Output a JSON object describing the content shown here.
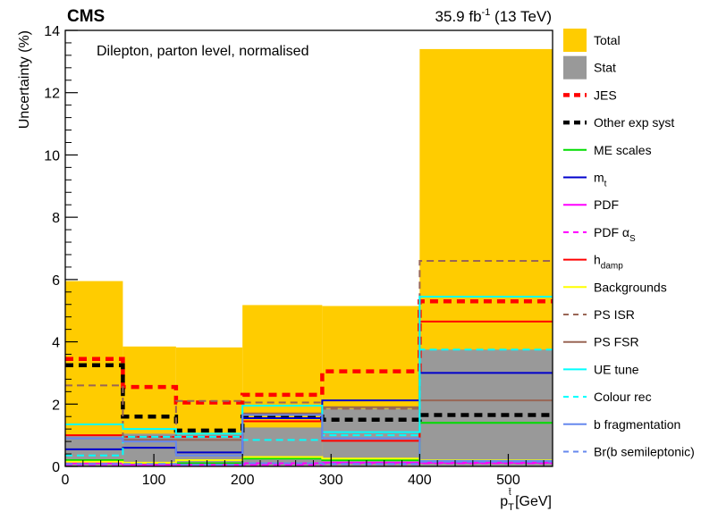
{
  "header": {
    "experiment": "CMS",
    "lumi_value": "35.9 fb",
    "lumi_exp": "-1",
    "energy": "(13 TeV)"
  },
  "chart_data": {
    "type": "bar",
    "subtype": "stacked-step-histogram",
    "annotation": "Dilepton, parton level, normalised",
    "ylabel": "Uncertainty (%)",
    "xlabel_main": "p",
    "xlabel_sub": "T",
    "xlabel_sup": "t̄",
    "xlabel_unit": "[GeV]",
    "xlim": [
      0,
      550
    ],
    "ylim": [
      0,
      14
    ],
    "x_ticks": [
      0,
      100,
      200,
      300,
      400,
      500
    ],
    "y_ticks": [
      0,
      2,
      4,
      6,
      8,
      10,
      12,
      14
    ],
    "bin_edges": [
      0,
      65,
      125,
      200,
      290,
      400,
      550
    ],
    "grid": false,
    "legend_position": "right",
    "series": [
      {
        "name": "Total",
        "style": "fill",
        "color": "#ffcc00",
        "values": [
          5.95,
          3.85,
          3.82,
          5.18,
          5.15,
          13.4
        ]
      },
      {
        "name": "Stat",
        "style": "fill",
        "color": "#999999",
        "values": [
          1.0,
          1.05,
          1.02,
          1.25,
          1.85,
          3.75
        ]
      },
      {
        "name": "JES",
        "style": "dash-thick",
        "color": "#ff0000",
        "values": [
          3.45,
          2.55,
          2.05,
          2.3,
          3.05,
          5.3
        ]
      },
      {
        "name": "Other exp syst",
        "style": "dash-thick",
        "color": "#000000",
        "values": [
          3.25,
          1.6,
          1.15,
          1.6,
          1.5,
          1.65
        ]
      },
      {
        "name": "ME scales",
        "style": "solid",
        "color": "#00dd00",
        "values": [
          0.2,
          0.1,
          0.1,
          0.25,
          0.2,
          1.4
        ]
      },
      {
        "name": "m",
        "sub": "t",
        "style": "solid",
        "color": "#0000cc",
        "values": [
          0.55,
          0.6,
          0.45,
          1.55,
          2.12,
          3.0
        ]
      },
      {
        "name": "PDF",
        "style": "solid",
        "color": "#ff00ff",
        "values": [
          0.1,
          0.05,
          0.05,
          0.1,
          0.12,
          0.12
        ]
      },
      {
        "name": "PDF α",
        "sub": "S",
        "style": "dash",
        "color": "#ff00ff",
        "values": [
          0.05,
          0.05,
          0.03,
          0.05,
          0.08,
          0.1
        ]
      },
      {
        "name": "h",
        "sub": "damp",
        "style": "solid",
        "color": "#ff0000",
        "values": [
          1.0,
          0.95,
          0.95,
          1.45,
          0.82,
          4.65
        ]
      },
      {
        "name": "Backgrounds",
        "style": "solid",
        "color": "#ffff00",
        "values": [
          0.15,
          0.12,
          0.2,
          0.3,
          0.25,
          0.2
        ]
      },
      {
        "name": "PS ISR",
        "style": "dash",
        "color": "#996655",
        "values": [
          2.6,
          0.95,
          2.1,
          2.05,
          1.85,
          6.6
        ]
      },
      {
        "name": "PS FSR",
        "style": "solid",
        "color": "#996655",
        "values": [
          0.9,
          0.85,
          0.85,
          1.7,
          1.9,
          2.12
        ]
      },
      {
        "name": "UE tune",
        "style": "solid",
        "color": "#00ffff",
        "values": [
          1.35,
          1.2,
          1.05,
          1.95,
          1.1,
          5.45
        ]
      },
      {
        "name": "Colour rec",
        "style": "dash",
        "color": "#00ffff",
        "values": [
          0.35,
          0.95,
          0.95,
          0.85,
          1.0,
          3.75
        ]
      },
      {
        "name": "b fragmentation",
        "style": "solid",
        "color": "#6688ee",
        "values": [
          0.9,
          0.8,
          0.35,
          1.65,
          0.9,
          0.18
        ]
      },
      {
        "name": "Br(b semileptonic)",
        "style": "dash",
        "color": "#6688ee",
        "values": [
          0.08,
          0.08,
          0.05,
          0.1,
          0.08,
          0.15
        ]
      }
    ]
  }
}
